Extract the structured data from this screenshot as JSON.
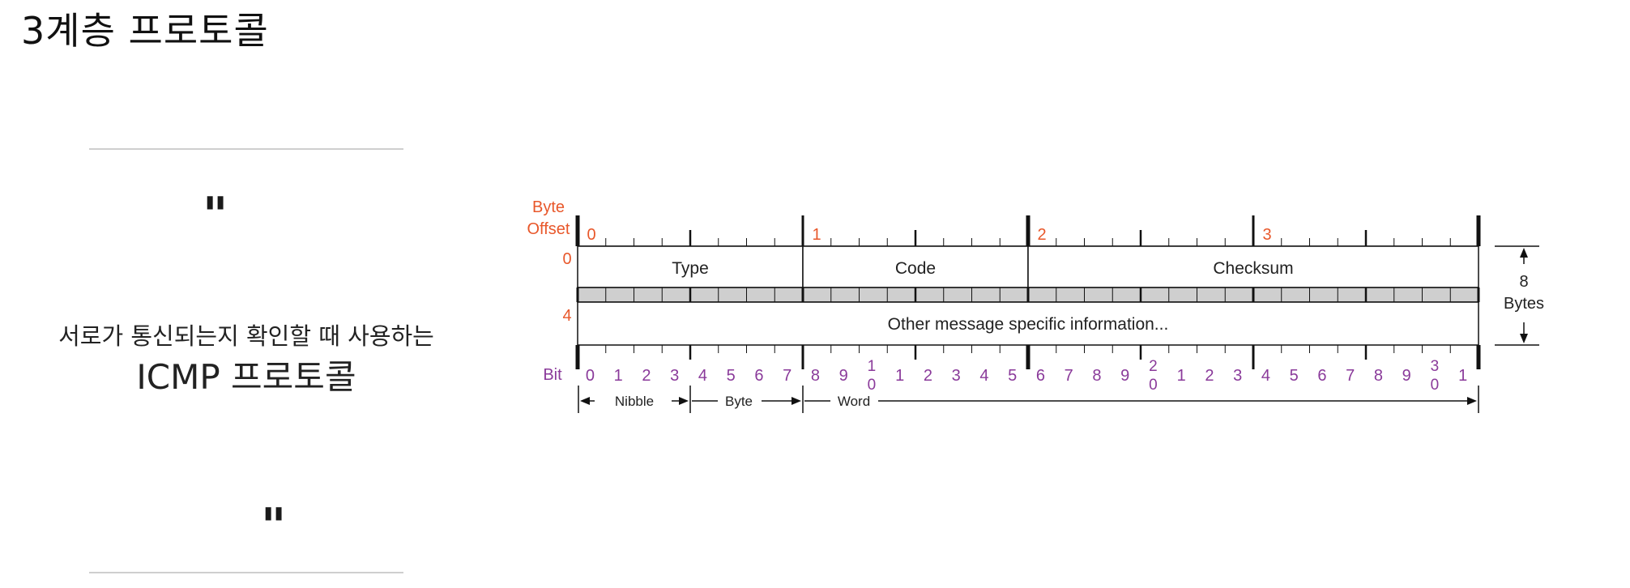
{
  "page": {
    "title": "3계층 프로토콜",
    "quote_open": "\"",
    "quote_close": "\"",
    "caption_line1": "서로가 통신되는지 확인할 때 사용하는",
    "caption_line2": "ICMP 프로토콜"
  },
  "diagram": {
    "byte_offset_label": [
      "Byte",
      "Offset"
    ],
    "byte_markers": [
      "0",
      "1",
      "2",
      "3"
    ],
    "row_offsets": [
      "0",
      "4"
    ],
    "fields": {
      "type": "Type",
      "code": "Code",
      "checksum": "Checksum",
      "other": "Other message specific information..."
    },
    "size_label": [
      "8",
      "Bytes"
    ],
    "bit_label": "Bit",
    "bit_numbers": [
      "0",
      "1",
      "2",
      "3",
      "4",
      "5",
      "6",
      "7",
      "8",
      "9",
      "1\n0",
      "1",
      "2",
      "3",
      "4",
      "5",
      "6",
      "7",
      "8",
      "9",
      "2\n0",
      "1",
      "2",
      "3",
      "4",
      "5",
      "6",
      "7",
      "8",
      "9",
      "3\n0",
      "1"
    ],
    "units": {
      "nibble": "Nibble",
      "byte": "Byte",
      "word": "Word"
    },
    "colors": {
      "offset": "#e8572a",
      "bit": "#8a3a9a",
      "line": "#111111",
      "strip": "#cfcfcf"
    }
  }
}
